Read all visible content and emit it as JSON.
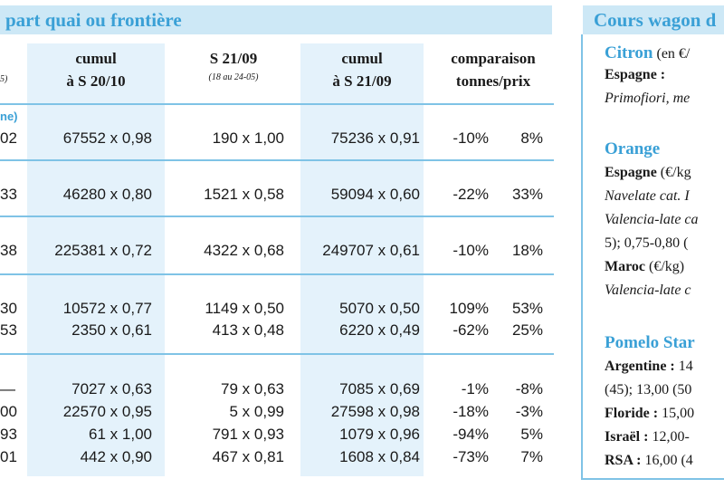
{
  "left_table": {
    "title": "part quai ou frontière",
    "headers": [
      {
        "line1": "cumul",
        "line2": "à S 20/10",
        "sub": ""
      },
      {
        "line1": "S 21/09",
        "line2": "",
        "sub": "(18 au 24-05)"
      },
      {
        "line1": "cumul",
        "line2": "à S 21/09",
        "sub": ""
      },
      {
        "line1": "comparaison",
        "line2": "tonnes/prix",
        "sub": ""
      }
    ],
    "header_fragment": "5)",
    "section_label": "ne)",
    "rows": [
      {
        "lead": "02",
        "c1": "67552 x 0,98",
        "c2": "190 x 1,00",
        "c3": "75236 x 0,91",
        "t": "-10%",
        "p": "8%"
      },
      {
        "lead": "33",
        "c1": "46280 x 0,80",
        "c2": "1521 x 0,58",
        "c3": "59094 x 0,60",
        "t": "-22%",
        "p": "33%"
      },
      {
        "lead": "38",
        "c1": "225381 x 0,72",
        "c2": "4322 x 0,68",
        "c3": "249707 x 0,61",
        "t": "-10%",
        "p": "18%"
      },
      {
        "lead": "30",
        "c1": "10572 x 0,77",
        "c2": "1149 x 0,50",
        "c3": "5070 x 0,50",
        "t": "109%",
        "p": "53%"
      },
      {
        "lead": "53",
        "c1": "2350 x 0,61",
        "c2": "413 x 0,48",
        "c3": "6220 x 0,49",
        "t": "-62%",
        "p": "25%"
      },
      {
        "lead": "—",
        "c1": "7027 x 0,63",
        "c2": "79 x 0,63",
        "c3": "7085 x 0,69",
        "t": "-1%",
        "p": "-8%"
      },
      {
        "lead": "00",
        "c1": "22570 x 0,95",
        "c2": "5 x 0,99",
        "c3": "27598 x 0,98",
        "t": "-18%",
        "p": "-3%"
      },
      {
        "lead": "93",
        "c1": "61 x 1,00",
        "c2": "791 x 0,93",
        "c3": "1079 x 0,96",
        "t": "-94%",
        "p": "5%"
      },
      {
        "lead": "01",
        "c1": "442 x 0,90",
        "c2": "467 x 0,81",
        "c3": "1608 x 0,84",
        "t": "-73%",
        "p": "7%"
      }
    ]
  },
  "right_column": {
    "title": "Cours wagon d",
    "lines": [
      {
        "segments": [
          {
            "text": "Citron",
            "style": "blue"
          },
          {
            "text": " (en €/",
            "style": "normal"
          }
        ]
      },
      {
        "segments": [
          {
            "text": "Espagne :",
            "style": "bold"
          }
        ]
      },
      {
        "segments": [
          {
            "text": "Primofiori, me",
            "style": "italic"
          }
        ]
      },
      {
        "segments": [
          {
            "text": "Orange",
            "style": "blue"
          }
        ]
      },
      {
        "segments": [
          {
            "text": "Espagne",
            "style": "bold"
          },
          {
            "text": " (€/kg",
            "style": "normal"
          }
        ]
      },
      {
        "segments": [
          {
            "text": "Navelate cat. I",
            "style": "italic"
          }
        ]
      },
      {
        "segments": [
          {
            "text": "Valencia-late ca",
            "style": "italic"
          }
        ]
      },
      {
        "segments": [
          {
            "text": "5); 0,75-0,80 (",
            "style": "normal"
          }
        ]
      },
      {
        "segments": [
          {
            "text": "Maroc",
            "style": "bold"
          },
          {
            "text": " (€/kg)",
            "style": "normal"
          }
        ]
      },
      {
        "segments": [
          {
            "text": "Valencia-late c",
            "style": "italic"
          }
        ]
      },
      {
        "segments": [
          {
            "text": "Pomelo Star",
            "style": "blue"
          }
        ]
      },
      {
        "segments": [
          {
            "text": "Argentine :",
            "style": "bold"
          },
          {
            "text": "  14",
            "style": "normal"
          }
        ]
      },
      {
        "segments": [
          {
            "text": "(45); 13,00 (50",
            "style": "normal"
          }
        ]
      },
      {
        "segments": [
          {
            "text": "Floride :",
            "style": "bold"
          },
          {
            "text": " 15,00",
            "style": "normal"
          }
        ]
      },
      {
        "segments": [
          {
            "text": "Israël :",
            "style": "bold"
          },
          {
            "text": " 12,00-",
            "style": "normal"
          }
        ]
      },
      {
        "segments": [
          {
            "text": "RSA :",
            "style": "bold"
          },
          {
            "text": " 16,00 (4",
            "style": "normal"
          }
        ]
      }
    ]
  },
  "colors": {
    "accent": "#3aa0d6",
    "band": "#cde8f6",
    "shade": "#e4f2fb",
    "rule": "#7fc3e6"
  }
}
